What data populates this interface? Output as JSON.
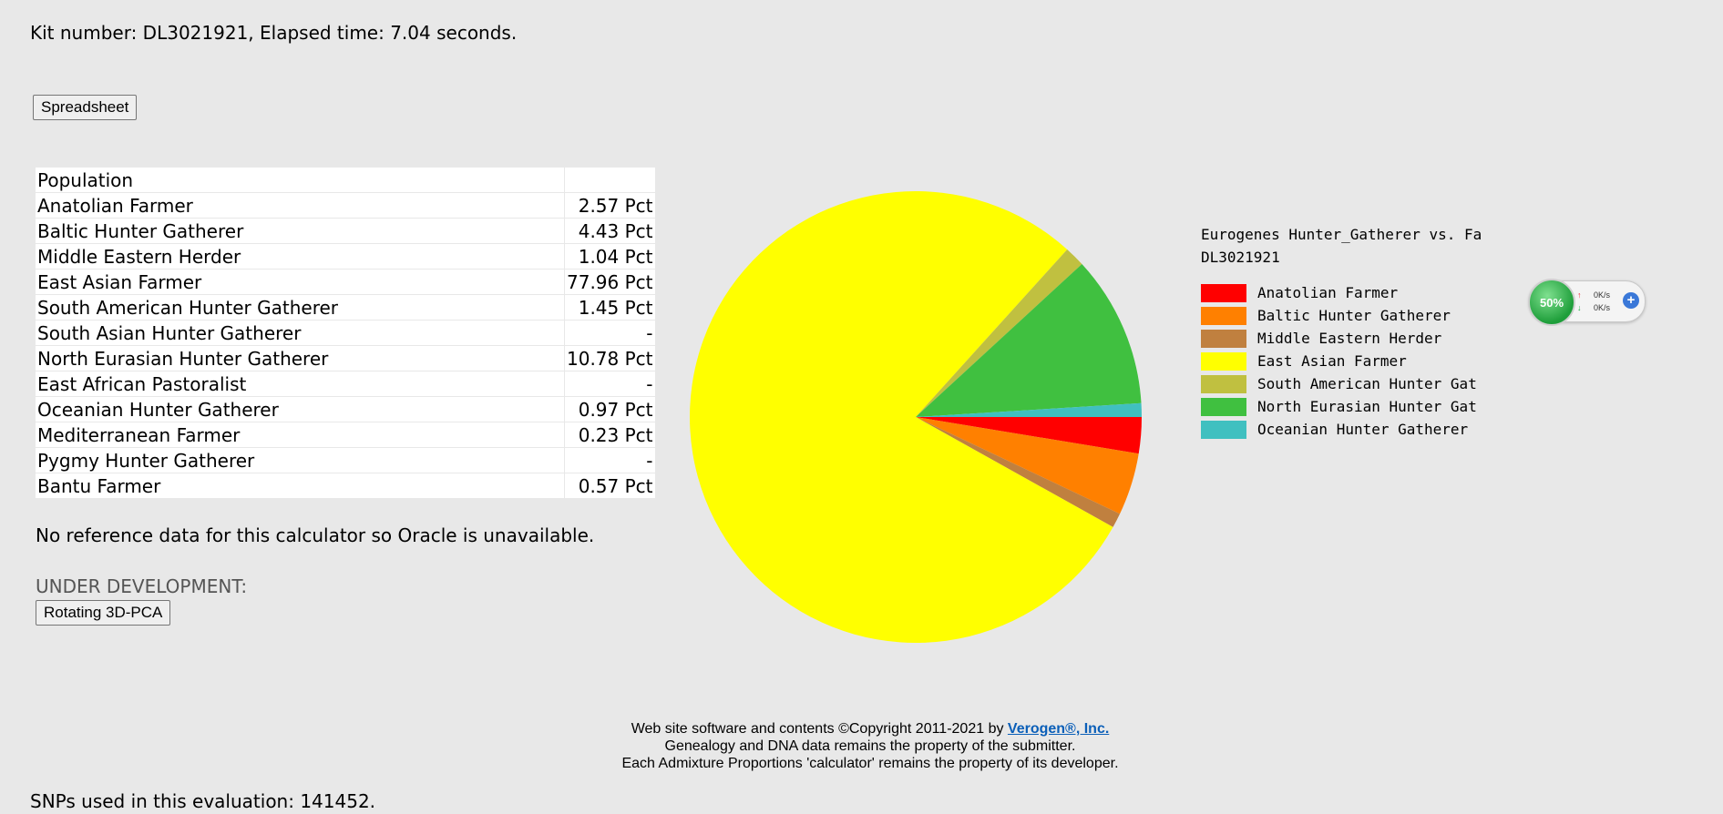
{
  "header": {
    "kit_text": "Kit number: DL3021921, Elapsed time: 7.04 seconds."
  },
  "buttons": {
    "spreadsheet": "Spreadsheet",
    "pca": "Rotating 3D-PCA"
  },
  "table": {
    "header": "Population",
    "rows": [
      {
        "name": "Anatolian Farmer",
        "value": "2.57 Pct"
      },
      {
        "name": "Baltic Hunter Gatherer",
        "value": "4.43 Pct"
      },
      {
        "name": "Middle Eastern Herder",
        "value": "1.04 Pct"
      },
      {
        "name": "East Asian Farmer",
        "value": "77.96 Pct"
      },
      {
        "name": "South American Hunter Gatherer",
        "value": "1.45 Pct"
      },
      {
        "name": "South Asian Hunter Gatherer",
        "value": "-"
      },
      {
        "name": "North Eurasian Hunter Gatherer",
        "value": "10.78 Pct"
      },
      {
        "name": "East African Pastoralist",
        "value": "-"
      },
      {
        "name": "Oceanian Hunter Gatherer",
        "value": "0.97 Pct"
      },
      {
        "name": "Mediterranean Farmer",
        "value": "0.23 Pct"
      },
      {
        "name": "Pygmy Hunter Gatherer",
        "value": "-"
      },
      {
        "name": "Bantu Farmer",
        "value": "0.57 Pct"
      }
    ]
  },
  "notes": {
    "no_reference": "No reference data for this calculator so Oracle is unavailable.",
    "under_dev": "UNDER DEVELOPMENT:"
  },
  "chart_data": {
    "type": "pie",
    "title": "Eurogenes Hunter_Gatherer vs. Fa",
    "subtitle": "DL3021921",
    "slices": [
      {
        "name": "Anatolian Farmer",
        "value": 2.57,
        "color": "#ff0000"
      },
      {
        "name": "Baltic Hunter Gatherer",
        "value": 4.43,
        "color": "#ff8000"
      },
      {
        "name": "Middle Eastern Herder",
        "value": 1.04,
        "color": "#c0803f"
      },
      {
        "name": "East Asian Farmer",
        "value": 77.96,
        "color": "#ffff00"
      },
      {
        "name": "South American Hunter Gatherer",
        "value": 1.45,
        "color": "#c0c040"
      },
      {
        "name": "North Eurasian Hunter Gatherer",
        "value": 10.78,
        "color": "#40c040"
      },
      {
        "name": "Oceanian Hunter Gatherer",
        "value": 0.97,
        "color": "#40c0c0"
      }
    ],
    "legend": [
      "Anatolian Farmer",
      "Baltic Hunter Gatherer",
      "Middle Eastern Herder",
      "East Asian Farmer",
      "South American Hunter Gat",
      "North Eurasian Hunter Gat",
      "Oceanian Hunter Gatherer"
    ],
    "legend_placement": "right"
  },
  "widget": {
    "percent": "50%",
    "up": "0K/s",
    "down": "0K/s"
  },
  "footer": {
    "line1_prefix": "Web site software and contents ©Copyright 2011-2021 by ",
    "link": "Verogen®, Inc.",
    "line2": "Genealogy and DNA data remains the property of the submitter.",
    "line3": "Each Admixture Proportions 'calculator' remains the property of its developer."
  },
  "snps_text": "SNPs used in this evaluation: 141452."
}
